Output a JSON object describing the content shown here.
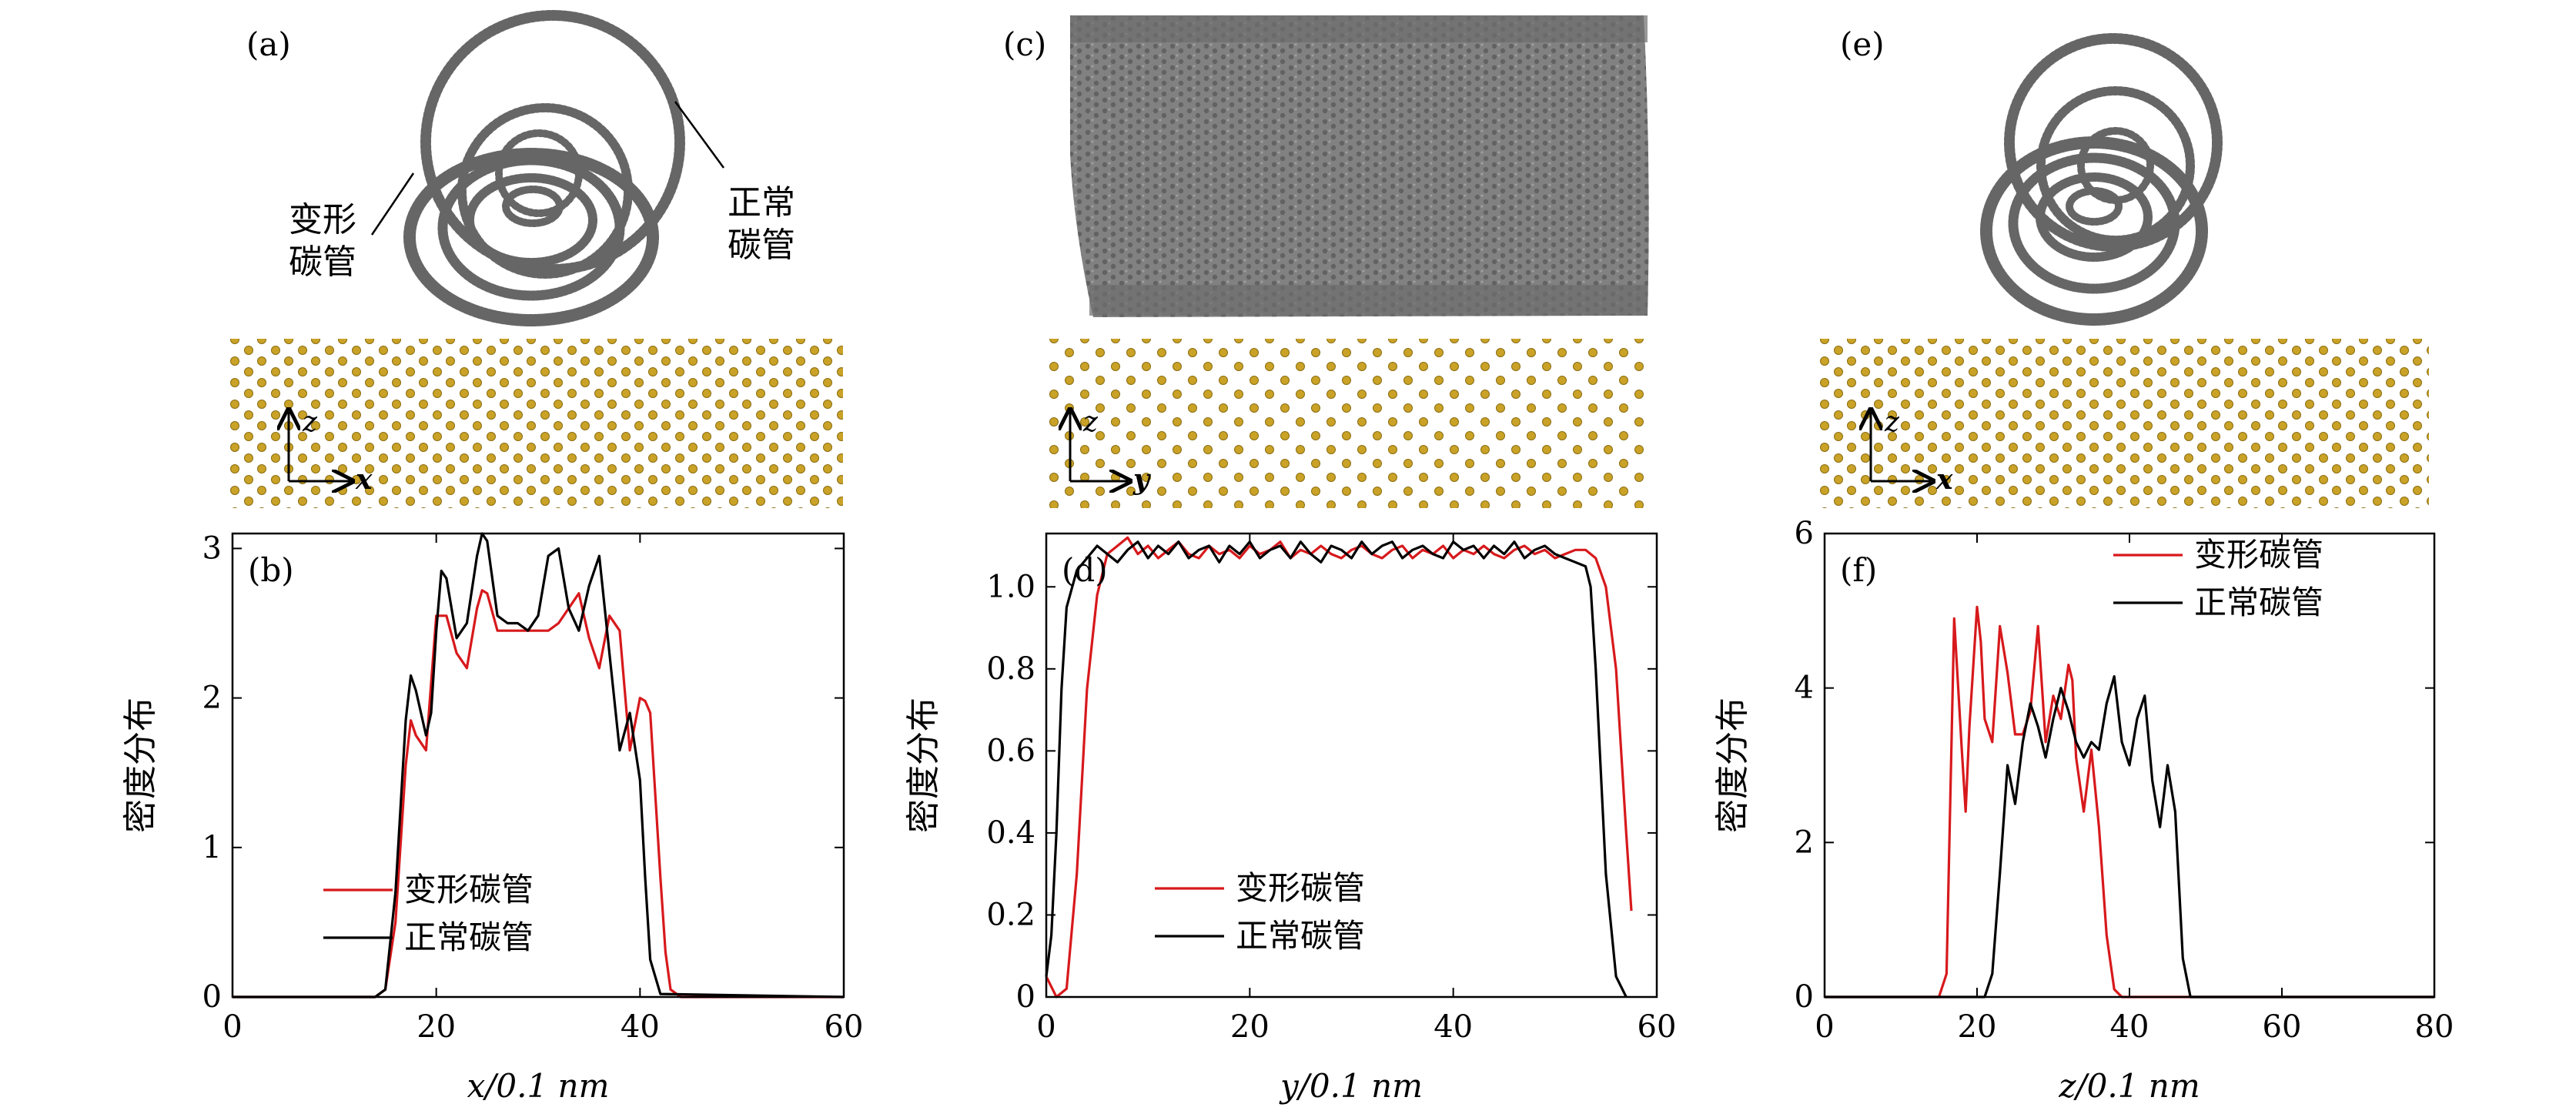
{
  "panels": {
    "a": {
      "label": "(a)",
      "deformed_label": [
        "变形",
        "碳管"
      ],
      "normal_label": [
        "正常",
        "碳管"
      ],
      "axes": [
        "z",
        "x"
      ]
    },
    "c": {
      "label": "(c)",
      "axes": [
        "z",
        "y"
      ]
    },
    "e": {
      "label": "(e)",
      "axes": [
        "z",
        "x"
      ]
    }
  },
  "colors": {
    "deformed": "#d7191c",
    "normal": "#000000",
    "atom_gold": "#c9a227",
    "tube_gray": "#6e6e6e"
  },
  "chart_data": [
    {
      "type": "line",
      "panel_label": "(b)",
      "xlabel": "x/0.1 nm",
      "ylabel": "密度分布",
      "xlim": [
        0,
        60
      ],
      "ylim": [
        0,
        3.1
      ],
      "xticks": [
        0,
        20,
        40,
        60
      ],
      "yticks": [
        0,
        1,
        2,
        3
      ],
      "ytick_labels": [
        "0",
        "1",
        "2",
        "3"
      ],
      "legend_position": "lower-left",
      "series": [
        {
          "name": "变形碳管",
          "color": "#d7191c",
          "x": [
            0,
            14,
            15,
            16,
            17,
            17.5,
            18,
            19,
            19.5,
            20,
            21,
            22,
            23,
            24,
            24.5,
            25,
            26,
            27,
            28,
            29,
            30,
            31,
            32,
            33,
            34,
            35,
            36,
            37,
            38,
            39,
            40,
            40.5,
            41,
            42,
            42.5,
            43,
            44,
            60
          ],
          "y": [
            0,
            0,
            0.05,
            0.5,
            1.55,
            1.85,
            1.75,
            1.65,
            2.1,
            2.55,
            2.55,
            2.3,
            2.2,
            2.6,
            2.72,
            2.7,
            2.45,
            2.45,
            2.45,
            2.45,
            2.45,
            2.45,
            2.5,
            2.6,
            2.7,
            2.4,
            2.2,
            2.55,
            2.45,
            1.65,
            2.0,
            1.98,
            1.9,
            0.8,
            0.3,
            0.05,
            0,
            0
          ]
        },
        {
          "name": "正常碳管",
          "color": "#000000",
          "x": [
            0,
            14,
            15,
            16,
            17,
            17.5,
            18,
            19,
            19.5,
            20,
            20.5,
            21,
            22,
            23,
            24,
            24.5,
            25,
            26,
            27,
            28,
            29,
            30,
            31,
            32,
            33,
            34,
            35,
            36,
            37,
            38,
            39,
            40,
            40.5,
            41,
            42,
            60
          ],
          "y": [
            0,
            0,
            0.05,
            0.7,
            1.85,
            2.15,
            2.05,
            1.75,
            1.9,
            2.45,
            2.85,
            2.8,
            2.4,
            2.5,
            2.95,
            3.1,
            3.05,
            2.55,
            2.5,
            2.5,
            2.45,
            2.55,
            2.95,
            3.0,
            2.6,
            2.45,
            2.75,
            2.95,
            2.3,
            1.65,
            1.9,
            1.45,
            0.8,
            0.25,
            0.02,
            0
          ]
        }
      ]
    },
    {
      "type": "line",
      "panel_label": "(d)",
      "xlabel": "y/0.1 nm",
      "ylabel": "密度分布",
      "xlim": [
        0,
        60
      ],
      "ylim": [
        0,
        1.13
      ],
      "xticks": [
        0,
        20,
        40,
        60
      ],
      "yticks": [
        0,
        0.2,
        0.4,
        0.6,
        0.8,
        1.0
      ],
      "ytick_labels": [
        "0",
        "0.2",
        "0.4",
        "0.6",
        "0.8",
        "1.0"
      ],
      "legend_position": "lower-center",
      "series": [
        {
          "name": "变形碳管",
          "color": "#d7191c",
          "x": [
            0,
            1,
            2,
            3,
            4,
            5,
            6,
            7,
            8,
            9,
            10,
            11,
            12,
            13,
            14,
            15,
            16,
            17,
            18,
            19,
            20,
            21,
            22,
            23,
            24,
            25,
            26,
            27,
            28,
            29,
            30,
            31,
            32,
            33,
            34,
            35,
            36,
            37,
            38,
            39,
            40,
            41,
            42,
            43,
            44,
            45,
            46,
            47,
            48,
            49,
            50,
            51,
            52,
            53,
            54,
            55,
            56,
            57,
            57.5
          ],
          "y": [
            0.05,
            0,
            0.02,
            0.3,
            0.75,
            0.98,
            1.08,
            1.1,
            1.12,
            1.08,
            1.1,
            1.07,
            1.09,
            1.11,
            1.08,
            1.07,
            1.1,
            1.08,
            1.09,
            1.07,
            1.1,
            1.08,
            1.09,
            1.11,
            1.07,
            1.09,
            1.08,
            1.1,
            1.08,
            1.07,
            1.09,
            1.1,
            1.08,
            1.07,
            1.09,
            1.1,
            1.07,
            1.09,
            1.08,
            1.1,
            1.07,
            1.09,
            1.08,
            1.1,
            1.08,
            1.07,
            1.09,
            1.1,
            1.08,
            1.09,
            1.07,
            1.08,
            1.09,
            1.09,
            1.07,
            1.0,
            0.8,
            0.4,
            0.21
          ]
        },
        {
          "name": "正常碳管",
          "color": "#000000",
          "x": [
            0,
            0.5,
            1,
            1.5,
            2,
            3,
            4,
            5,
            6,
            7,
            8,
            9,
            10,
            11,
            12,
            13,
            14,
            15,
            16,
            17,
            18,
            19,
            20,
            21,
            22,
            23,
            24,
            25,
            26,
            27,
            28,
            29,
            30,
            31,
            32,
            33,
            34,
            35,
            36,
            37,
            38,
            39,
            40,
            41,
            42,
            43,
            44,
            45,
            46,
            47,
            48,
            49,
            50,
            51,
            52,
            53,
            53.5,
            54,
            55,
            56,
            57
          ],
          "y": [
            0.05,
            0.15,
            0.4,
            0.75,
            0.95,
            1.04,
            1.07,
            1.1,
            1.08,
            1.06,
            1.09,
            1.11,
            1.07,
            1.1,
            1.08,
            1.11,
            1.07,
            1.09,
            1.1,
            1.06,
            1.1,
            1.08,
            1.11,
            1.07,
            1.09,
            1.1,
            1.07,
            1.11,
            1.08,
            1.06,
            1.1,
            1.09,
            1.07,
            1.11,
            1.08,
            1.1,
            1.11,
            1.07,
            1.09,
            1.1,
            1.08,
            1.07,
            1.11,
            1.09,
            1.1,
            1.07,
            1.1,
            1.08,
            1.11,
            1.07,
            1.09,
            1.1,
            1.08,
            1.07,
            1.06,
            1.05,
            1.0,
            0.8,
            0.3,
            0.05,
            0
          ]
        }
      ]
    },
    {
      "type": "line",
      "panel_label": "(f)",
      "xlabel": "z/0.1 nm",
      "ylabel": "密度分布",
      "xlim": [
        0,
        80
      ],
      "ylim": [
        0,
        6
      ],
      "xticks": [
        0,
        20,
        40,
        60,
        80
      ],
      "yticks": [
        0,
        2,
        4,
        6
      ],
      "ytick_labels": [
        "0",
        "2",
        "4",
        "6"
      ],
      "legend_position": "top-right",
      "series": [
        {
          "name": "变形碳管",
          "color": "#d7191c",
          "x": [
            0,
            15,
            16,
            17,
            18,
            18.5,
            19,
            20,
            20.5,
            21,
            22,
            23,
            24,
            25,
            26,
            27,
            28,
            29,
            30,
            31,
            32,
            32.5,
            33,
            34,
            35,
            36,
            37,
            38,
            39,
            80
          ],
          "y": [
            0,
            0,
            0.3,
            4.9,
            3.2,
            2.4,
            3.5,
            5.05,
            4.6,
            3.6,
            3.3,
            4.8,
            4.2,
            3.4,
            3.4,
            3.7,
            4.8,
            3.3,
            3.9,
            3.6,
            4.3,
            4.1,
            3.1,
            2.4,
            3.2,
            2.2,
            0.8,
            0.1,
            0,
            0
          ]
        },
        {
          "name": "正常碳管",
          "color": "#000000",
          "x": [
            0,
            21,
            22,
            23,
            24,
            25,
            26,
            27,
            28,
            29,
            30,
            31,
            32,
            33,
            34,
            35,
            36,
            37,
            38,
            39,
            40,
            41,
            42,
            43,
            44,
            45,
            46,
            47,
            48,
            80
          ],
          "y": [
            0,
            0,
            0.3,
            1.6,
            3.0,
            2.5,
            3.3,
            3.8,
            3.5,
            3.1,
            3.6,
            4.0,
            3.7,
            3.3,
            3.1,
            3.3,
            3.2,
            3.8,
            4.15,
            3.3,
            3.0,
            3.6,
            3.9,
            2.8,
            2.2,
            3.0,
            2.4,
            0.5,
            0,
            0
          ]
        }
      ]
    }
  ]
}
